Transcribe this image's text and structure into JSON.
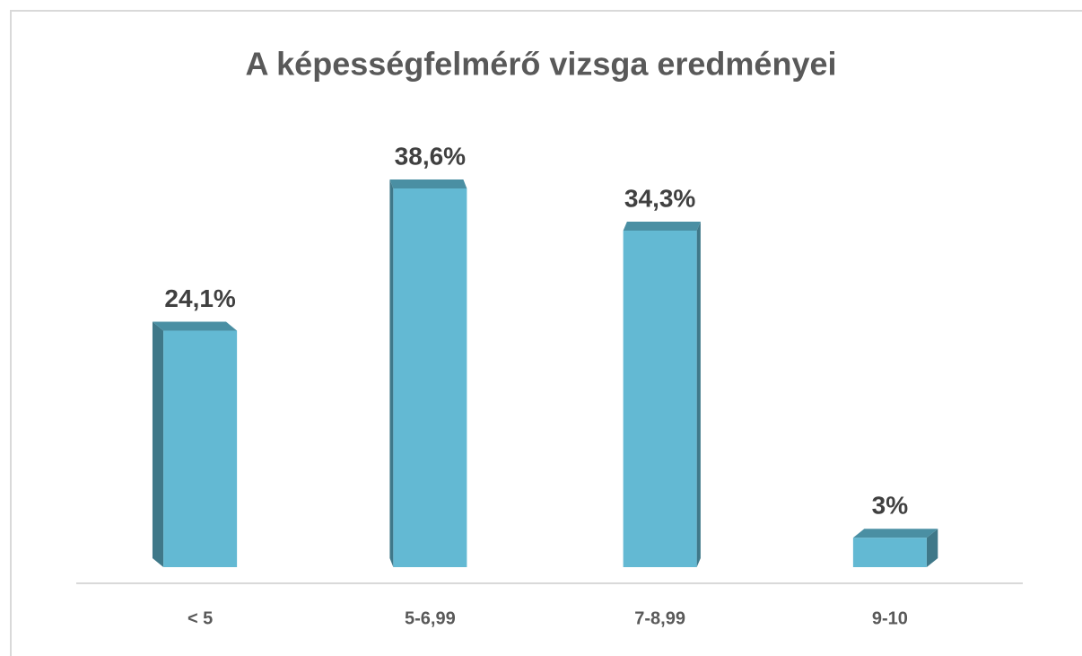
{
  "chart_data": {
    "type": "bar",
    "title": "A képességfelmérő vizsga eredményei",
    "categories": [
      "< 5",
      "5-6,99",
      "7-8,99",
      "9-10"
    ],
    "values": [
      24.1,
      38.6,
      34.3,
      3
    ],
    "value_labels": [
      "24,1%",
      "38,6%",
      "34,3%",
      "3%"
    ],
    "color": "#63b9d3"
  }
}
